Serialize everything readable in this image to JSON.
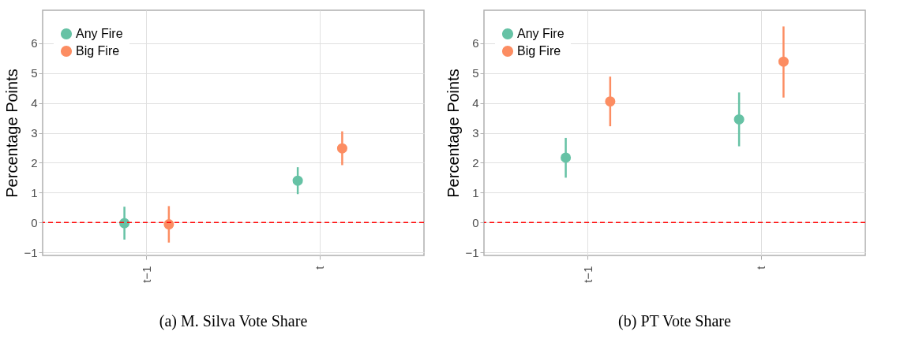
{
  "chart_data": [
    {
      "type": "scatter",
      "title": "(a) M. Silva Vote Share",
      "ylabel": "Percentage Points",
      "categories": [
        "t−1",
        "t"
      ],
      "series": [
        {
          "name": "Any Fire",
          "color": "#66c2a5",
          "values": [
            -0.02,
            1.4
          ],
          "errors": [
            [
              -0.57,
              0.53
            ],
            [
              0.95,
              1.85
            ]
          ]
        },
        {
          "name": "Big Fire",
          "color": "#fc8d62",
          "values": [
            -0.06,
            2.48
          ],
          "errors": [
            [
              -0.67,
              0.55
            ],
            [
              1.92,
              3.05
            ]
          ]
        }
      ],
      "ylim": [
        -1.1,
        7.1
      ],
      "yticks": [
        {
          "value": -1,
          "label": "−1"
        },
        0,
        1,
        2,
        3,
        4,
        5,
        6
      ],
      "ref_lines": [
        {
          "axis": "y",
          "value": 0,
          "color": "#ff0000",
          "line_style": "dashed"
        }
      ],
      "legend": "top left",
      "grid": true,
      "marker": "circle"
    },
    {
      "type": "scatter",
      "title": "(b) PT Vote Share",
      "ylabel": "Percentage Points",
      "categories": [
        "t−1",
        "t"
      ],
      "series": [
        {
          "name": "Any Fire",
          "color": "#66c2a5",
          "values": [
            2.17,
            3.45
          ],
          "errors": [
            [
              1.5,
              2.83
            ],
            [
              2.55,
              4.35
            ]
          ]
        },
        {
          "name": "Big Fire",
          "color": "#fc8d62",
          "values": [
            4.05,
            5.38
          ],
          "errors": [
            [
              3.22,
              4.88
            ],
            [
              4.18,
              6.56
            ]
          ]
        }
      ],
      "ylim": [
        -1.1,
        7.1
      ],
      "yticks": [
        {
          "value": -1,
          "label": "−1"
        },
        0,
        1,
        2,
        3,
        4,
        5,
        6
      ],
      "ref_lines": [
        {
          "axis": "y",
          "value": 0,
          "color": "#ff0000",
          "line_style": "dashed"
        }
      ],
      "legend": "top left",
      "grid": true,
      "marker": "circle"
    }
  ]
}
